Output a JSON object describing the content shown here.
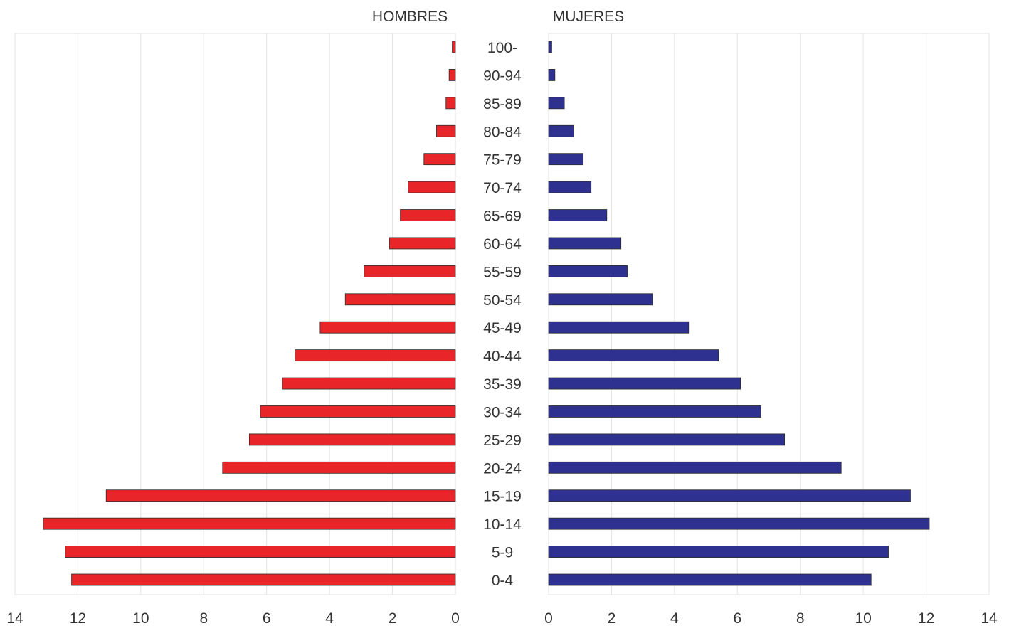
{
  "chart_data": {
    "type": "bar",
    "orientation": "horizontal",
    "layout": "population-pyramid",
    "title": "",
    "left_header": "HOMBRES",
    "right_header": "MUJERES",
    "categories": [
      "100-",
      "90-94",
      "85-89",
      "80-84",
      "75-79",
      "70-74",
      "65-69",
      "60-64",
      "55-59",
      "50-54",
      "45-49",
      "40-44",
      "35-39",
      "30-34",
      "25-29",
      "20-24",
      "15-19",
      "10-14",
      "5-9",
      "0-4"
    ],
    "series": [
      {
        "side": "left",
        "color": "#e8262a",
        "values": [
          0.1,
          0.2,
          0.3,
          0.6,
          1.0,
          1.5,
          1.75,
          2.1,
          2.9,
          3.5,
          4.3,
          5.1,
          5.5,
          6.2,
          6.55,
          7.4,
          11.1,
          13.1,
          12.4,
          12.2
        ]
      },
      {
        "side": "right",
        "color": "#2f3191",
        "values": [
          0.1,
          0.2,
          0.5,
          0.8,
          1.1,
          1.35,
          1.85,
          2.3,
          2.5,
          3.3,
          4.45,
          5.4,
          6.1,
          6.75,
          7.5,
          9.3,
          11.5,
          12.1,
          10.8,
          10.25
        ]
      }
    ],
    "xlim": [
      0,
      14
    ],
    "ticks": [
      0,
      2,
      4,
      6,
      8,
      10,
      12,
      14
    ],
    "grid": true
  }
}
